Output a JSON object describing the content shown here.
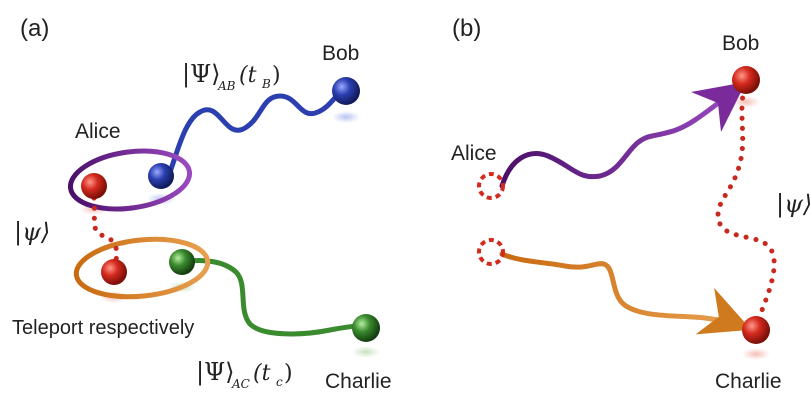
{
  "panel_a": {
    "label": "(a)",
    "alice": "Alice",
    "bob": "Bob",
    "charlie": "Charlie",
    "psi": "|ψ⟩",
    "psi_ab": {
      "psi": "|Ψ⟩",
      "sub": "AB",
      "arg_open": "(t",
      "arg_sub": "B",
      "arg_close": ")"
    },
    "psi_ac": {
      "psi": "|Ψ⟩",
      "sub": "AC",
      "arg_open": "(t",
      "arg_sub": "c",
      "arg_close": ")"
    },
    "caption": "Teleport respectively"
  },
  "panel_b": {
    "label": "(b)",
    "alice": "Alice",
    "bob": "Bob",
    "charlie": "Charlie",
    "psi": "|ψ⟩"
  },
  "colors": {
    "red": "#d42a1e",
    "blue": "#2b3fb0",
    "green": "#3a8a2e",
    "purple": "#6a1f8a",
    "orange": "#e08a2a",
    "dotted": "#c8281e"
  }
}
